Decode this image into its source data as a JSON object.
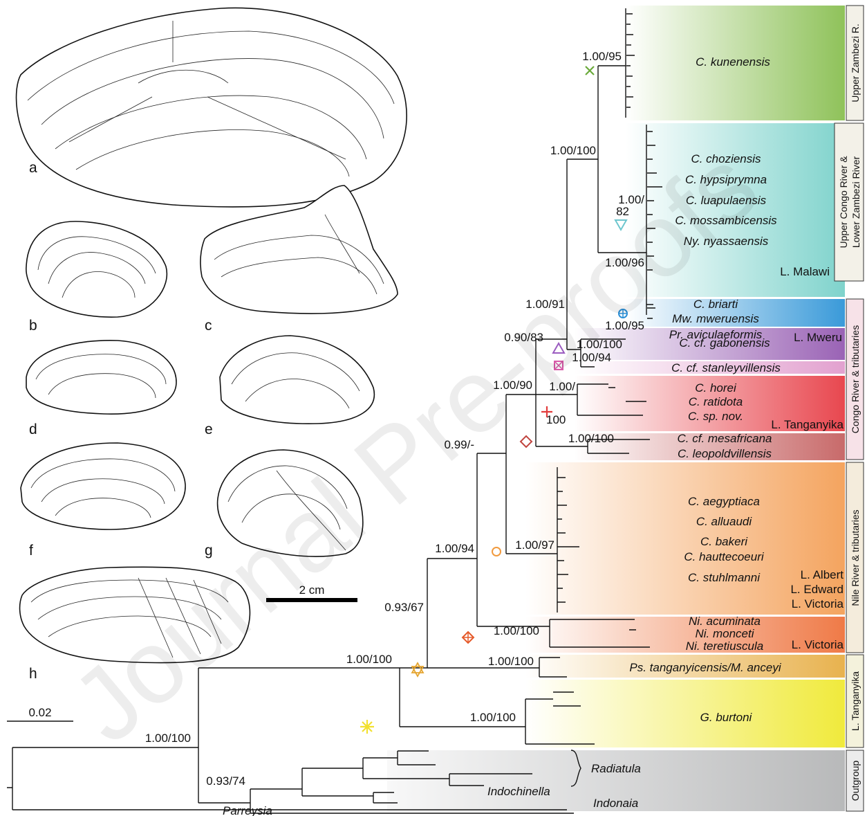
{
  "panel_labels": [
    "a",
    "b",
    "c",
    "d",
    "e",
    "f",
    "g",
    "h"
  ],
  "scale_bars": {
    "shell": "2 cm",
    "tree": "0.02"
  },
  "watermark": "Journal Pre-proofs",
  "supports": {
    "kunenensis": "1.00/95",
    "zambezi": "1.00/100",
    "chozien_a": "1.00/",
    "chozien_b": "82",
    "congo_low": "1.00/96",
    "mweru": "1.00/95",
    "upper": "1.00/91",
    "congo": "0.90/83",
    "gabon": "1.00/100",
    "stanley": "1.00/94",
    "tang_a": "1.00/",
    "tang_b": "100",
    "meso": "1.00/100",
    "core": "1.00/90",
    "nile": "1.00/97",
    "core2": "0.99/-",
    "nitia": "1.00/100",
    "c94": "1.00/94",
    "c67": "0.93/67",
    "pseudo": "1.00/100",
    "ingroup": "1.00/100",
    "burtoni": "1.00/100",
    "root": "1.00/100",
    "outgroup": "0.93/74"
  },
  "clades": [
    {
      "taxa": [
        "C. kunenensis"
      ],
      "locality": "",
      "region": "Upper Zambezi R.",
      "color": "#8fc25a"
    },
    {
      "taxa": [
        "C. choziensis",
        "C. hypsiprymna",
        "C. luapulaensis",
        "C. mossambicensis",
        "Ny. nyassaensis"
      ],
      "locality": "L. Malawi",
      "region": "Upper Congo River & Lower Zambezi River",
      "color": "#7fd3cc"
    },
    {
      "taxa": [
        "C. briarti",
        "Mw. mweruensis",
        "Pr. aviculaeformis"
      ],
      "locality": "L. Mweru",
      "region": "",
      "color": "#3a9ad9"
    },
    {
      "taxa": [
        "C. cf. gabonensis"
      ],
      "locality": "",
      "region": "",
      "color": "#9a63b5"
    },
    {
      "taxa": [
        "C. cf. stanleyvillensis"
      ],
      "locality": "",
      "region": "",
      "color": "#e2a1cf"
    },
    {
      "taxa": [
        "C. horei",
        "C. ratidota",
        "C. sp. nov."
      ],
      "locality": "L. Tanganyika",
      "region": "",
      "color": "#e8474f"
    },
    {
      "taxa": [
        "C. cf. mesafricana",
        "C. leopoldvillensis"
      ],
      "locality": "",
      "region": "",
      "color": "#c86a6a"
    },
    {
      "taxa": [
        "C. aegyptiaca",
        "C. alluaudi",
        "C. bakeri",
        "C. hauttecoeuri",
        "C. stuhlmanni"
      ],
      "locality": "L. Albert / L. Edward / L. Victoria",
      "region": "Nile River & tributaries",
      "color": "#f4a45f"
    },
    {
      "taxa": [
        "Ni. acuminata",
        "Ni. monceti",
        "Ni. teretiuscula"
      ],
      "locality": "L. Victoria",
      "region": "",
      "color": "#ef7a47"
    },
    {
      "taxa": [
        "Ps. tanganyicensis/M. anceyi"
      ],
      "locality": "",
      "region": "",
      "color": "#e8b24e"
    },
    {
      "taxa": [
        "G. burtoni"
      ],
      "locality": "",
      "region": "L. Tanganyika",
      "color": "#f0ea3c"
    },
    {
      "taxa": [
        "Radiatula",
        "Indochinella",
        "Indonaia",
        "Parreysia"
      ],
      "locality": "",
      "region": "Outgroup",
      "color": "#b8b9ba"
    }
  ],
  "congo_region": "Congo River & tributaries",
  "locality_lines": [
    "L. Albert",
    "L. Edward",
    "L. Victoria"
  ],
  "marker_colors": {
    "kunenensis": "#6aaa3a",
    "zambezi": "#6ec6ce",
    "mweru": "#2b8fd6",
    "gabon": "#9b5cc0",
    "stanley": "#d85aa8",
    "tang": "#e23c3c",
    "meso": "#c0443e",
    "nile": "#f19a3e",
    "nitia": "#e55a2a",
    "pseudo": "#e5a530",
    "burtoni": "#f2e030"
  }
}
